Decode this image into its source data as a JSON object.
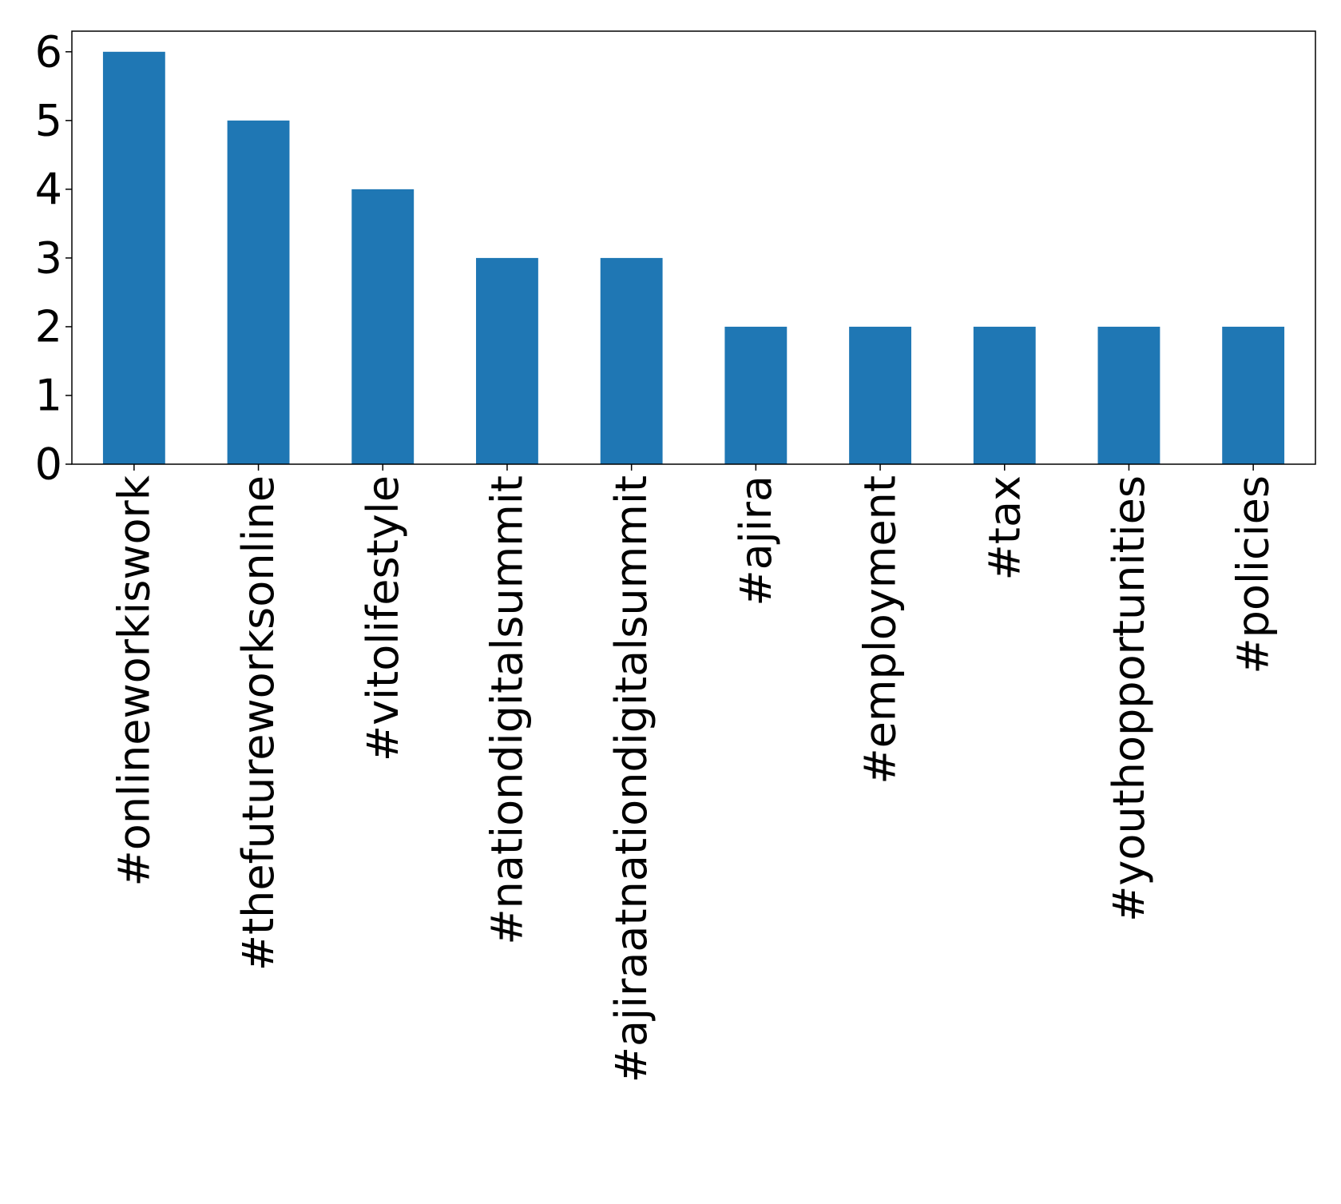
{
  "chart_data": {
    "type": "bar",
    "title": "",
    "xlabel": "",
    "ylabel": "",
    "categories": [
      "#onlineworkiswork",
      "#thefutureworksonline",
      "#vitolifestyle",
      "#nationdigitalsummit",
      "#ajiraatnationdigitalsummit",
      "#ajira",
      "#employment",
      "#tax",
      "#youthopportunities",
      "#policies"
    ],
    "values": [
      6,
      5,
      4,
      3,
      3,
      2,
      2,
      2,
      2,
      2
    ],
    "ylim": [
      0,
      6.3
    ],
    "yticks": [
      "0",
      "1",
      "2",
      "3",
      "4",
      "5",
      "6"
    ],
    "grid": false,
    "legend": "none",
    "colors": {
      "bar": "#1f77b4",
      "axis": "#000000",
      "background": "#ffffff"
    }
  }
}
